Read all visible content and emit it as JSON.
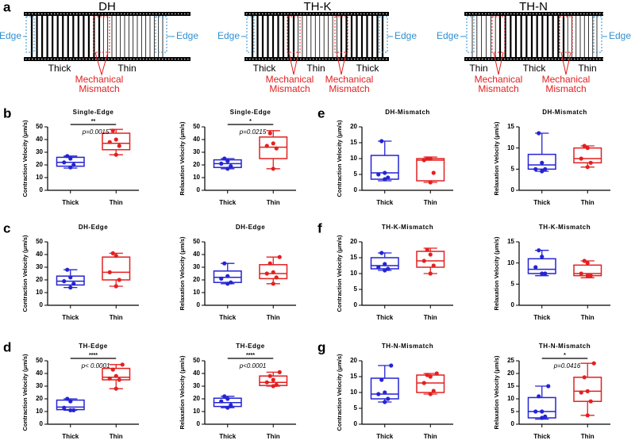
{
  "diagram": {
    "label": "a",
    "panels": [
      {
        "title": "DH",
        "edge_left": "Edge",
        "edge_right": "Edge",
        "labels": [
          "Thick",
          "Thin"
        ],
        "mismatches": [
          {
            "lines": [
              "Mechanical",
              "Mismatch"
            ]
          }
        ]
      },
      {
        "title": "TH-K",
        "edge_left": "Edge",
        "edge_right": "Edge",
        "labels": [
          "Thick",
          "Thin",
          "Thick"
        ],
        "mismatches": [
          {
            "lines": [
              "Mechanical",
              "Mismatch"
            ]
          },
          {
            "lines": [
              "Mechanical",
              "Mismatch"
            ]
          }
        ]
      },
      {
        "title": "TH-N",
        "edge_left": "Edge",
        "edge_right": "Edge",
        "labels": [
          "Thin",
          "Thick",
          "Thin"
        ],
        "mismatches": [
          {
            "lines": [
              "Mechanical",
              "Mismatch"
            ]
          },
          {
            "lines": [
              "Mechanical",
              "Mismatch"
            ]
          }
        ]
      }
    ]
  },
  "chart_data": [
    {
      "type": "box",
      "panel": "b",
      "title": "Single-Edge",
      "y_label": "Contraction Velocity (μm/s)",
      "ylim": [
        0,
        50
      ],
      "yticks": [
        0,
        10,
        20,
        30,
        40,
        50
      ],
      "series": [
        {
          "name": "Thick",
          "color": "#2424d4",
          "min": 17.5,
          "q1": 19,
          "median": 22,
          "q3": 26,
          "max": 27,
          "points": [
            18,
            20,
            22,
            25,
            27
          ]
        },
        {
          "name": "Thin",
          "color": "#e32020",
          "min": 28,
          "q1": 32,
          "median": 37,
          "q3": 45,
          "max": 48,
          "points": [
            28,
            35,
            38,
            40,
            47
          ]
        }
      ],
      "significance": "**",
      "p_value": "p=0.0015"
    },
    {
      "type": "box",
      "title": "Single-Edge",
      "y_label": "Relaxation Velocity (μm/s)",
      "ylim": [
        0,
        50
      ],
      "yticks": [
        0,
        10,
        20,
        30,
        40,
        50
      ],
      "series": [
        {
          "name": "Thick",
          "color": "#2424d4",
          "min": 17,
          "q1": 18,
          "median": 21,
          "q3": 24,
          "max": 25,
          "points": [
            17,
            19,
            21,
            23,
            25
          ]
        },
        {
          "name": "Thin",
          "color": "#e32020",
          "min": 17,
          "q1": 25,
          "median": 34,
          "q3": 42,
          "max": 47,
          "points": [
            17,
            33,
            35,
            37,
            45
          ]
        }
      ],
      "significance": "*",
      "p_value": "p=0.0215"
    },
    {
      "type": "box",
      "panel": "e",
      "title": "DH-Mismatch",
      "y_label": "Contraction Velocity (μm/s)",
      "ylim": [
        0,
        20
      ],
      "yticks": [
        0,
        5,
        10,
        15,
        20
      ],
      "series": [
        {
          "name": "Thick",
          "color": "#2424d4",
          "min": 3,
          "q1": 3.5,
          "median": 5.5,
          "q3": 11,
          "max": 15.5,
          "points": [
            3.5,
            4,
            5,
            5.5,
            15.5
          ]
        },
        {
          "name": "Thin",
          "color": "#e32020",
          "min": 2.5,
          "q1": 3,
          "median": 9.5,
          "q3": 10,
          "max": 10.5,
          "points": [
            2.5,
            5.5,
            9.5,
            10,
            10
          ]
        }
      ]
    },
    {
      "type": "box",
      "title": "DH-Mismatch",
      "y_label": "Relaxation Velocity (μm/s)",
      "ylim": [
        0,
        15
      ],
      "yticks": [
        0,
        5,
        10,
        15
      ],
      "series": [
        {
          "name": "Thick",
          "color": "#2424d4",
          "min": 4.5,
          "q1": 5,
          "median": 6,
          "q3": 8.5,
          "max": 13.5,
          "points": [
            4.5,
            5,
            5,
            6.5,
            13.5
          ]
        },
        {
          "name": "Thin",
          "color": "#e32020",
          "min": 5.5,
          "q1": 6.5,
          "median": 7.5,
          "q3": 10,
          "max": 10.5,
          "points": [
            5.5,
            6.5,
            7.5,
            10,
            10.5
          ]
        }
      ]
    },
    {
      "type": "box",
      "panel": "c",
      "title": "DH-Edge",
      "y_label": "Contraction Velocity (μm/s)",
      "ylim": [
        0,
        50
      ],
      "yticks": [
        0,
        10,
        20,
        30,
        40,
        50
      ],
      "series": [
        {
          "name": "Thick",
          "color": "#2424d4",
          "min": 14,
          "q1": 16,
          "median": 19,
          "q3": 23,
          "max": 28,
          "points": [
            14,
            17,
            19,
            22,
            28
          ]
        },
        {
          "name": "Thin",
          "color": "#e32020",
          "min": 15,
          "q1": 20,
          "median": 26,
          "q3": 38,
          "max": 41,
          "points": [
            15,
            20,
            26,
            39,
            41
          ]
        }
      ]
    },
    {
      "type": "box",
      "title": "DH-Edge",
      "y_label": "Relaxation Velocity (μm/s)",
      "ylim": [
        0,
        50
      ],
      "yticks": [
        0,
        10,
        20,
        30,
        40,
        50
      ],
      "series": [
        {
          "name": "Thick",
          "color": "#2424d4",
          "min": 17,
          "q1": 18,
          "median": 22,
          "q3": 27,
          "max": 33,
          "points": [
            17,
            18,
            21,
            23,
            33
          ]
        },
        {
          "name": "Thin",
          "color": "#e32020",
          "min": 17,
          "q1": 21,
          "median": 25,
          "q3": 32,
          "max": 38,
          "points": [
            17,
            22,
            25,
            26,
            33,
            38
          ]
        }
      ]
    },
    {
      "type": "box",
      "panel": "f",
      "title": "TH-K-Mismatch",
      "y_label": "Contraction Velocity (μm/s)",
      "ylim": [
        0,
        20
      ],
      "yticks": [
        0,
        5,
        10,
        15,
        20
      ],
      "series": [
        {
          "name": "Thick",
          "color": "#2424d4",
          "min": 11,
          "q1": 11.5,
          "median": 12.5,
          "q3": 15,
          "max": 16.5,
          "points": [
            11,
            11.5,
            12,
            13,
            16.5
          ]
        },
        {
          "name": "Thin",
          "color": "#e32020",
          "min": 10,
          "q1": 12,
          "median": 14,
          "q3": 17,
          "max": 18,
          "points": [
            10,
            12.5,
            14,
            16,
            17.5
          ]
        }
      ]
    },
    {
      "type": "box",
      "title": "TH-K-Mismatch",
      "y_label": "Relaxation Velocity (μm/s)",
      "ylim": [
        0,
        15
      ],
      "yticks": [
        0,
        5,
        10,
        15
      ],
      "series": [
        {
          "name": "Thick",
          "color": "#2424d4",
          "min": 7,
          "q1": 7.5,
          "median": 8.5,
          "q3": 11,
          "max": 13,
          "points": [
            7.5,
            7.5,
            9,
            11.5,
            13
          ]
        },
        {
          "name": "Thin",
          "color": "#e32020",
          "min": 6.5,
          "q1": 7,
          "median": 7.5,
          "q3": 9.5,
          "max": 10.5,
          "points": [
            7,
            7,
            7.5,
            10,
            10.5
          ]
        }
      ]
    },
    {
      "type": "box",
      "panel": "d",
      "title": "TH-Edge",
      "y_label": "Contraction Velocity (μm/s)",
      "ylim": [
        0,
        50
      ],
      "yticks": [
        0,
        10,
        20,
        30,
        40,
        50
      ],
      "series": [
        {
          "name": "Thick",
          "color": "#2424d4",
          "min": 11,
          "q1": 11.5,
          "median": 13.5,
          "q3": 19,
          "max": 20,
          "points": [
            11,
            11,
            13,
            18,
            20
          ]
        },
        {
          "name": "Thin",
          "color": "#e32020",
          "min": 28,
          "q1": 35,
          "median": 37,
          "q3": 44,
          "max": 47,
          "points": [
            28,
            35,
            36,
            38,
            43,
            47
          ]
        }
      ],
      "significance": "****",
      "p_value": "p< 0.0001"
    },
    {
      "type": "box",
      "title": "TH-Edge",
      "y_label": "Relaxation Velocity (μm/s)",
      "ylim": [
        0,
        50
      ],
      "yticks": [
        0,
        10,
        20,
        30,
        40,
        50
      ],
      "series": [
        {
          "name": "Thick",
          "color": "#2424d4",
          "min": 13,
          "q1": 14,
          "median": 17,
          "q3": 20.5,
          "max": 22,
          "points": [
            13,
            15,
            18,
            20,
            22
          ]
        },
        {
          "name": "Thin",
          "color": "#e32020",
          "min": 30,
          "q1": 30.5,
          "median": 33,
          "q3": 38,
          "max": 41,
          "points": [
            30,
            31,
            33,
            35,
            38,
            41
          ]
        }
      ],
      "significance": "****",
      "p_value": "p<0.0001"
    },
    {
      "type": "box",
      "panel": "g",
      "title": "TH-N-Mismatch",
      "y_label": "Contraction Velocity (μm/s)",
      "ylim": [
        0,
        20
      ],
      "yticks": [
        0,
        5,
        10,
        15,
        20
      ],
      "series": [
        {
          "name": "Thick",
          "color": "#2424d4",
          "min": 7,
          "q1": 8,
          "median": 9.5,
          "q3": 14.5,
          "max": 18.5,
          "points": [
            7,
            8,
            9.5,
            10,
            14,
            18.5
          ]
        },
        {
          "name": "Thin",
          "color": "#e32020",
          "min": 9.5,
          "q1": 10,
          "median": 13,
          "q3": 15.5,
          "max": 16,
          "points": [
            9.5,
            10.5,
            13,
            15,
            15.5,
            16
          ]
        }
      ]
    },
    {
      "type": "box",
      "title": "TH-N-Mismatch",
      "y_label": "Relaxation Velocity (μm/s)",
      "ylim": [
        0,
        25
      ],
      "yticks": [
        0,
        5,
        10,
        15,
        20,
        25
      ],
      "series": [
        {
          "name": "Thick",
          "color": "#2424d4",
          "min": 2,
          "q1": 2.5,
          "median": 5,
          "q3": 10.5,
          "max": 15,
          "points": [
            2.5,
            3,
            5,
            5,
            11,
            15
          ]
        },
        {
          "name": "Thin",
          "color": "#e32020",
          "min": 3.5,
          "q1": 9,
          "median": 13,
          "q3": 18.5,
          "max": 24,
          "points": [
            3.5,
            9,
            12.5,
            13,
            18.5,
            24
          ]
        }
      ],
      "significance": "*",
      "p_value": "p=0.0416"
    }
  ]
}
